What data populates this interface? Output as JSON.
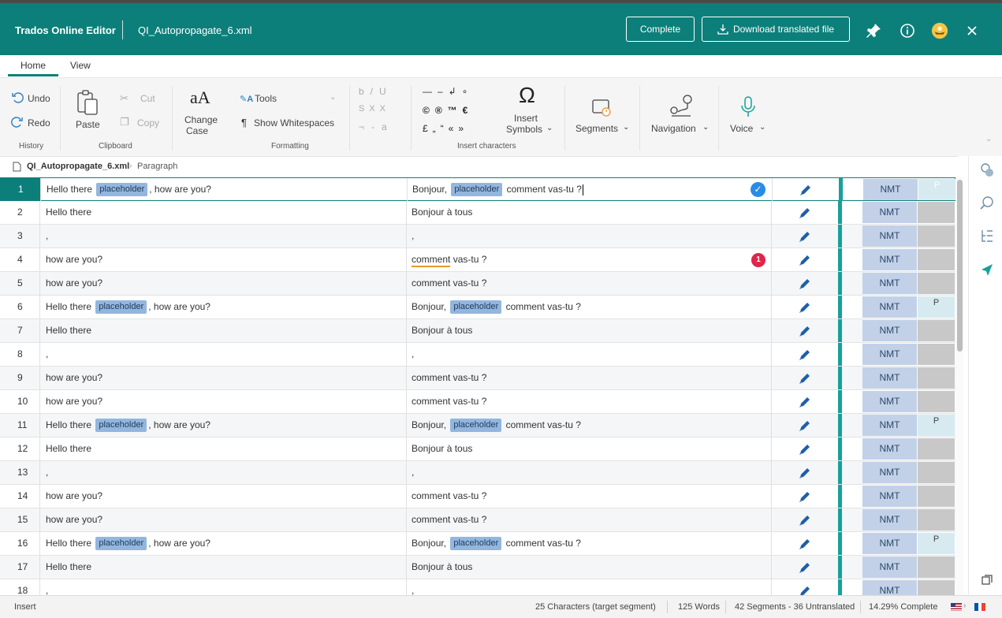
{
  "header": {
    "app_title": "Trados Online Editor",
    "file_title": "QI_Autopropagate_6.xml",
    "complete_label": "Complete",
    "download_label": "Download translated file",
    "color": "#0d7f7a"
  },
  "tabs": [
    {
      "label": "Home",
      "active": true
    },
    {
      "label": "View",
      "active": false
    }
  ],
  "ribbon": {
    "history": {
      "undo": "Undo",
      "redo": "Redo",
      "group": "History"
    },
    "clipboard": {
      "paste": "Paste",
      "cut": "Cut",
      "copy": "Copy",
      "group": "Clipboard"
    },
    "formatting": {
      "change_case_1": "Change",
      "change_case_2": "Case",
      "tools": "Tools",
      "show_whitespaces": "Show Whitespaces",
      "group": "Formatting"
    },
    "insert_characters": {
      "group": "Insert characters",
      "insert_symbols_1": "Insert",
      "insert_symbols_2": "Symbols"
    },
    "segments": "Segments",
    "navigation": "Navigation",
    "voice": "Voice"
  },
  "breadcrumb": {
    "file": "QI_Autopropagate_6.xml",
    "section": "Paragraph"
  },
  "rows": [
    {
      "n": "1",
      "src": [
        "Hello there ",
        "placeholder",
        ", how are you?"
      ],
      "tgt": [
        "Bonjour, ",
        "placeholder",
        " comment vas-tu ?"
      ],
      "status": "P"
    },
    {
      "n": "2",
      "src": [
        "Hello there"
      ],
      "tgt": [
        "Bonjour à tous"
      ],
      "status": ""
    },
    {
      "n": "3",
      "src": [
        ","
      ],
      "tgt": [
        ","
      ],
      "status": ""
    },
    {
      "n": "4",
      "src": [
        "how are you?"
      ],
      "tgt": [
        "comment",
        " vas-tu ?"
      ],
      "status": "",
      "qa": "1"
    },
    {
      "n": "5",
      "src": [
        "how are you?"
      ],
      "tgt": [
        "comment vas-tu ?"
      ],
      "status": ""
    },
    {
      "n": "6",
      "src": [
        "Hello there ",
        "placeholder",
        ", how are you?"
      ],
      "tgt": [
        "Bonjour, ",
        "placeholder",
        " comment vas-tu ?"
      ],
      "status": "P"
    },
    {
      "n": "7",
      "src": [
        "Hello there"
      ],
      "tgt": [
        "Bonjour à tous"
      ],
      "status": ""
    },
    {
      "n": "8",
      "src": [
        ","
      ],
      "tgt": [
        ","
      ],
      "status": ""
    },
    {
      "n": "9",
      "src": [
        "how are you?"
      ],
      "tgt": [
        "comment vas-tu ?"
      ],
      "status": ""
    },
    {
      "n": "10",
      "src": [
        "how are you?"
      ],
      "tgt": [
        "comment vas-tu ?"
      ],
      "status": ""
    },
    {
      "n": "11",
      "src": [
        "Hello there ",
        "placeholder",
        ", how are you?"
      ],
      "tgt": [
        "Bonjour, ",
        "placeholder",
        " comment vas-tu ?"
      ],
      "status": "P"
    },
    {
      "n": "12",
      "src": [
        "Hello there"
      ],
      "tgt": [
        "Bonjour à tous"
      ],
      "status": ""
    },
    {
      "n": "13",
      "src": [
        ","
      ],
      "tgt": [
        ","
      ],
      "status": ""
    },
    {
      "n": "14",
      "src": [
        "how are you?"
      ],
      "tgt": [
        "comment vas-tu ?"
      ],
      "status": ""
    },
    {
      "n": "15",
      "src": [
        "how are you?"
      ],
      "tgt": [
        "comment vas-tu ?"
      ],
      "status": ""
    },
    {
      "n": "16",
      "src": [
        "Hello there ",
        "placeholder",
        ", how are you?"
      ],
      "tgt": [
        "Bonjour, ",
        "placeholder",
        " comment vas-tu ?"
      ],
      "status": "P"
    },
    {
      "n": "17",
      "src": [
        "Hello there"
      ],
      "tgt": [
        "Bonjour à tous"
      ],
      "status": ""
    },
    {
      "n": "18",
      "src": [
        ","
      ],
      "tgt": [
        ","
      ],
      "status": ""
    }
  ],
  "match_label": "NMT",
  "statusbar": {
    "mode": "Insert",
    "characters": "25 Characters (target segment)",
    "words": "125 Words",
    "segments": "42 Segments - 36 Untranslated",
    "complete": "14.29% Complete"
  },
  "colors": {
    "teal": "#0d7f7a",
    "nmt": "#c2d1e8",
    "tag": "#93b6de",
    "qa_error": "#e0244a",
    "confirmed": "#2a8be6"
  }
}
